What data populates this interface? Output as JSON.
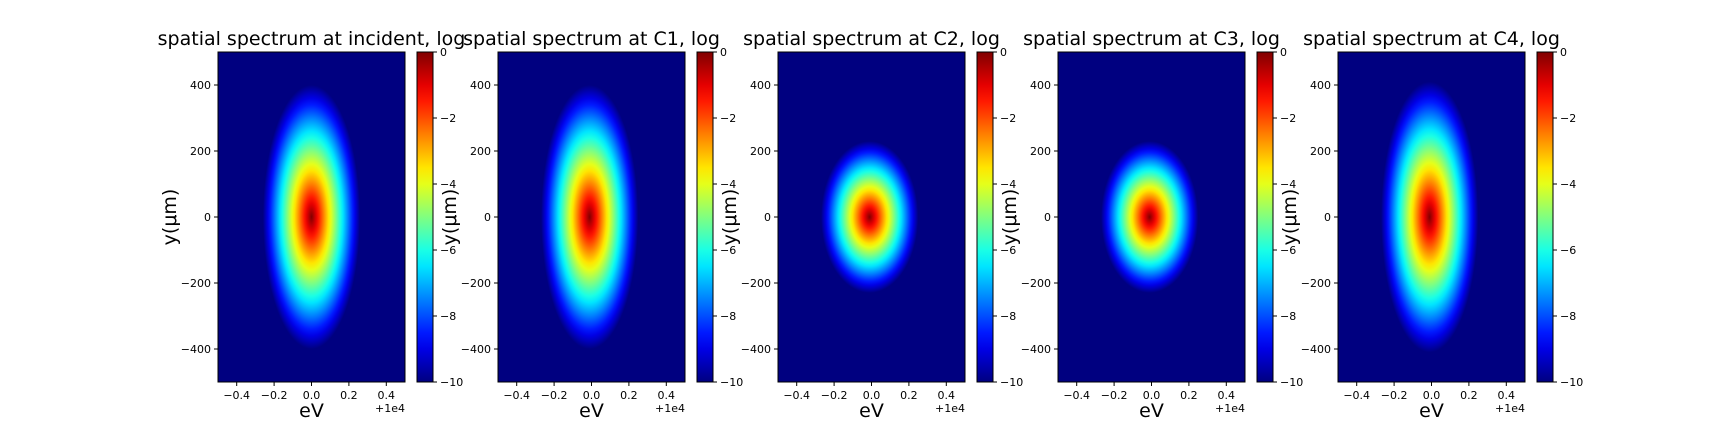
{
  "chart_data": [
    {
      "type": "heatmap",
      "title": "spatial spectrum at incident, log",
      "xlabel": "eV",
      "ylabel": "y($\\mu$m)",
      "ylabel_display": "y(μm)",
      "x_offset_label": "+1e4",
      "xlim": [
        9999.5,
        10000.5
      ],
      "ylim": [
        -500,
        500
      ],
      "xticks": [
        -0.4,
        -0.2,
        0.0,
        0.2,
        0.4
      ],
      "xtick_labels": [
        "−0.4",
        "−0.2",
        "0.0",
        "0.2",
        "0.4"
      ],
      "yticks": [
        -400,
        -200,
        0,
        200,
        400
      ],
      "ytick_labels": [
        "−400",
        "−200",
        "0",
        "200",
        "400"
      ],
      "colorscale": "jet",
      "clim": [
        -10,
        0
      ],
      "colorbar_ticks": [
        0,
        -2,
        -4,
        -6,
        -8,
        -10
      ],
      "colorbar_tick_labels": [
        "0",
        "−2",
        "−4",
        "−6",
        "−8",
        "−10"
      ],
      "spot": {
        "center_x": 10000.0,
        "center_y": 0,
        "extent_x": 0.26,
        "extent_y": 400
      }
    },
    {
      "type": "heatmap",
      "title": "spatial spectrum at C1, log",
      "xlabel": "eV",
      "ylabel": "y($\\mu$m)",
      "ylabel_display": "y(μm)",
      "x_offset_label": "+1e4",
      "xlim": [
        9999.5,
        10000.5
      ],
      "ylim": [
        -500,
        500
      ],
      "xticks": [
        -0.4,
        -0.2,
        0.0,
        0.2,
        0.4
      ],
      "xtick_labels": [
        "−0.4",
        "−0.2",
        "0.0",
        "0.2",
        "0.4"
      ],
      "yticks": [
        -400,
        -200,
        0,
        200,
        400
      ],
      "ytick_labels": [
        "−400",
        "−200",
        "0",
        "200",
        "400"
      ],
      "colorscale": "jet",
      "clim": [
        -10,
        0
      ],
      "colorbar_ticks": [
        0,
        -2,
        -4,
        -6,
        -8,
        -10
      ],
      "colorbar_tick_labels": [
        "0",
        "−2",
        "−4",
        "−6",
        "−8",
        "−10"
      ],
      "spot": {
        "center_x": 9999.99,
        "center_y": 0,
        "extent_x": 0.26,
        "extent_y": 400
      }
    },
    {
      "type": "heatmap",
      "title": "spatial spectrum at C2, log",
      "xlabel": "eV",
      "ylabel": "y($\\mu$m)",
      "ylabel_display": "y(μm)",
      "x_offset_label": "+1e4",
      "xlim": [
        9999.5,
        10000.5
      ],
      "ylim": [
        -500,
        500
      ],
      "xticks": [
        -0.4,
        -0.2,
        0.0,
        0.2,
        0.4
      ],
      "xtick_labels": [
        "−0.4",
        "−0.2",
        "0.0",
        "0.2",
        "0.4"
      ],
      "yticks": [
        -400,
        -200,
        0,
        200,
        400
      ],
      "ytick_labels": [
        "−400",
        "−200",
        "0",
        "200",
        "400"
      ],
      "colorscale": "jet",
      "clim": [
        -10,
        0
      ],
      "colorbar_ticks": [
        0,
        -2,
        -4,
        -6,
        -8,
        -10
      ],
      "colorbar_tick_labels": [
        "0",
        "−2",
        "−4",
        "−6",
        "−8",
        "−10"
      ],
      "spot": {
        "center_x": 9999.99,
        "center_y": 0,
        "extent_x": 0.26,
        "extent_y": 230
      }
    },
    {
      "type": "heatmap",
      "title": "spatial spectrum at C3, log",
      "xlabel": "eV",
      "ylabel": "y($\\mu$m)",
      "ylabel_display": "y(μm)",
      "x_offset_label": "+1e4",
      "xlim": [
        9999.5,
        10000.5
      ],
      "ylim": [
        -500,
        500
      ],
      "xticks": [
        -0.4,
        -0.2,
        0.0,
        0.2,
        0.4
      ],
      "xtick_labels": [
        "−0.4",
        "−0.2",
        "0.0",
        "0.2",
        "0.4"
      ],
      "yticks": [
        -400,
        -200,
        0,
        200,
        400
      ],
      "ytick_labels": [
        "−400",
        "−200",
        "0",
        "200",
        "400"
      ],
      "colorscale": "jet",
      "clim": [
        -10,
        0
      ],
      "colorbar_ticks": [
        0,
        -2,
        -4,
        -6,
        -8,
        -10
      ],
      "colorbar_tick_labels": [
        "0",
        "−2",
        "−4",
        "−6",
        "−8",
        "−10"
      ],
      "spot": {
        "center_x": 9999.99,
        "center_y": 0,
        "extent_x": 0.26,
        "extent_y": 230
      }
    },
    {
      "type": "heatmap",
      "title": "spatial spectrum at C4, log",
      "xlabel": "eV",
      "ylabel": "y($\\mu$m)",
      "ylabel_display": "y(μm)",
      "x_offset_label": "+1e4",
      "xlim": [
        9999.5,
        10000.5
      ],
      "ylim": [
        -500,
        500
      ],
      "xticks": [
        -0.4,
        -0.2,
        0.0,
        0.2,
        0.4
      ],
      "xtick_labels": [
        "−0.4",
        "−0.2",
        "0.0",
        "0.2",
        "0.4"
      ],
      "yticks": [
        -400,
        -200,
        0,
        200,
        400
      ],
      "ytick_labels": [
        "−400",
        "−200",
        "0",
        "200",
        "400"
      ],
      "colorscale": "jet",
      "clim": [
        -10,
        0
      ],
      "colorbar_ticks": [
        0,
        -2,
        -4,
        -6,
        -8,
        -10
      ],
      "colorbar_tick_labels": [
        "0",
        "−2",
        "−4",
        "−6",
        "−8",
        "−10"
      ],
      "spot": {
        "center_x": 9999.99,
        "center_y": 0,
        "extent_x": 0.26,
        "extent_y": 410
      }
    }
  ]
}
